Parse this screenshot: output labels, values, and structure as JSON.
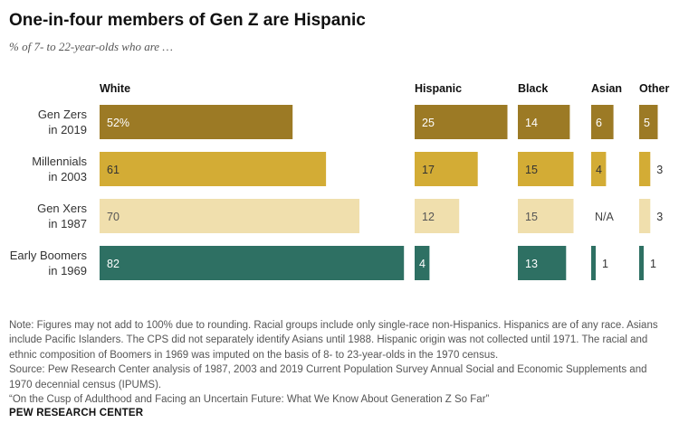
{
  "title": "One-in-four members of Gen Z are Hispanic",
  "subtitle": "% of 7- to 22-year-olds who are …",
  "chart_data": {
    "type": "bar",
    "orientation": "horizontal",
    "title": "One-in-four members of Gen Z are Hispanic",
    "subtitle": "% of 7- to 22-year-olds who are …",
    "categories": [
      [
        "Gen Zers",
        "in 2019"
      ],
      [
        "Millennials",
        "in 2003"
      ],
      [
        "Gen Xers",
        "in 1987"
      ],
      [
        "Early Boomers",
        "in 1969"
      ]
    ],
    "category_colors": [
      "#9c7a25",
      "#d3ac35",
      "#f0dfad",
      "#2e7063"
    ],
    "label_colors": [
      "#ffffff",
      "#333333",
      "#555555",
      "#ffffff"
    ],
    "series": [
      {
        "name": "White",
        "values": [
          52,
          61,
          70,
          82
        ],
        "labels": [
          "52%",
          "61",
          "70",
          "82"
        ]
      },
      {
        "name": "Hispanic",
        "values": [
          25,
          17,
          12,
          4
        ],
        "labels": [
          "25",
          "17",
          "12",
          "4"
        ]
      },
      {
        "name": "Black",
        "values": [
          14,
          15,
          15,
          13
        ],
        "labels": [
          "14",
          "15",
          "15",
          "13"
        ]
      },
      {
        "name": "Asian",
        "values": [
          6,
          4,
          null,
          1
        ],
        "labels": [
          "6",
          "4",
          "N/A",
          "1"
        ]
      },
      {
        "name": "Other",
        "values": [
          5,
          3,
          3,
          1
        ],
        "labels": [
          "5",
          "3",
          "3",
          "1"
        ]
      }
    ]
  },
  "notes": [
    "Note: Figures may not add to 100% due to rounding. Racial groups include only single-race non-Hispanics. Hispanics are of any race. Asians include Pacific Islanders. The CPS did not separately identify Asians until 1988. Hispanic origin was not collected until 1971. The racial and ethnic composition of Boomers in 1969 was imputed on the basis of 8- to 23-year-olds in the 1970 census.",
    "Source: Pew Research Center analysis of 1987, 2003 and 2019 Current Population Survey Annual Social and Economic Supplements and 1970 decennial census (IPUMS).",
    "“On the Cusp of Adulthood and Facing an Uncertain Future: What We Know About Generation Z So Far”"
  ],
  "source_name": "PEW RESEARCH CENTER"
}
